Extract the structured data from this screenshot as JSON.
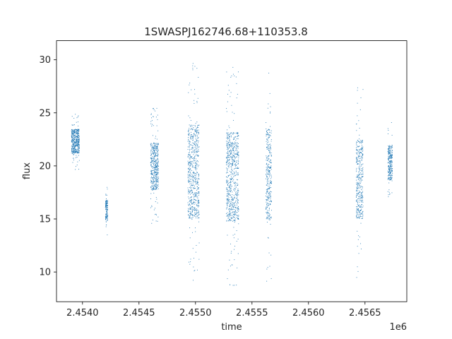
{
  "chart_data": {
    "type": "scatter",
    "title": "1SWASPJ162746.68+110353.8",
    "xlabel": "time",
    "ylabel": "flux",
    "x_offset_label": "1e6",
    "xlim": [
      2.45377,
      2.45687
    ],
    "ylim": [
      7.2,
      31.8
    ],
    "x_ticks": [
      2.454,
      2.4545,
      2.455,
      2.4555,
      2.456,
      2.4565
    ],
    "x_tick_labels": [
      "2.4540",
      "2.4545",
      "2.4550",
      "2.4555",
      "2.4560",
      "2.4565"
    ],
    "y_ticks": [
      10,
      15,
      20,
      25,
      30
    ],
    "y_tick_labels": [
      "10",
      "15",
      "20",
      "25",
      "30"
    ],
    "marker_color": "#1f77b4",
    "grid": false,
    "legend": "none",
    "clusters": [
      {
        "x": [
          2.4539,
          2.45397
        ],
        "y": [
          19.5,
          25.2
        ]
      },
      {
        "x": [
          2.4542,
          2.45422
        ],
        "y": [
          13.5,
          18.2
        ]
      },
      {
        "x": [
          2.4546,
          2.45467
        ],
        "y": [
          14.5,
          25.5
        ]
      },
      {
        "x": [
          2.45493,
          2.45503
        ],
        "y": [
          8.5,
          30.5
        ]
      },
      {
        "x": [
          2.45527,
          2.45538
        ],
        "y": [
          8.5,
          29.5
        ]
      },
      {
        "x": [
          2.45562,
          2.45567
        ],
        "y": [
          8.5,
          30.0
        ]
      },
      {
        "x": [
          2.45642,
          2.45648
        ],
        "y": [
          9.5,
          28.0
        ]
      },
      {
        "x": [
          2.4567,
          2.45674
        ],
        "y": [
          16.2,
          24.5
        ]
      }
    ]
  }
}
